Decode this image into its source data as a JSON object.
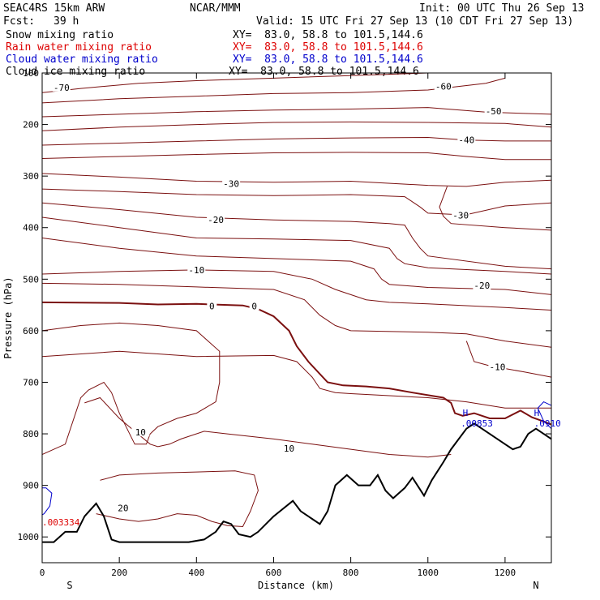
{
  "header": {
    "model": "SEAC4RS 15km ARW",
    "center": "NCAR/MMM",
    "init": "Init: 00 UTC Thu 26 Sep 13",
    "fcst_label": "Fcst:",
    "fcst_value": "39 h",
    "valid": "Valid: 15 UTC Fri 27 Sep 13 (10 CDT Fri 27 Sep 13)"
  },
  "colors": {
    "temperature": "#7b1010",
    "freezing": "#7b1010",
    "snow": "#000000",
    "rain": "#dd0000",
    "cloud_water": "#0000cc",
    "cloud_ice": "#000000",
    "terrain": "#000000"
  },
  "fields": [
    {
      "name": "Snow mixing ratio",
      "xy": "XY=  83.0, 58.8 to 101.5,144.6",
      "color": "#000000"
    },
    {
      "name": "Rain water mixing ratio",
      "xy": "XY=  83.0, 58.8 to 101.5,144.6",
      "color": "#dd0000"
    },
    {
      "name": "Cloud water mixing ratio",
      "xy": "XY=  83.0, 58.8 to 101.5,144.6",
      "color": "#0000cc"
    },
    {
      "name": "Cloud ice mixing ratio",
      "xy": "XY=  83.0, 58.8 to 101.5,144.6",
      "color": "#000000"
    }
  ],
  "chart_data": {
    "type": "line",
    "xlabel": "Distance (km)",
    "ylabel": "Pressure (hPa)",
    "xlim": [
      0,
      1320
    ],
    "ylim": [
      1050,
      100
    ],
    "x_ticks": [
      0,
      200,
      400,
      600,
      800,
      1000,
      1200
    ],
    "y_ticks": [
      200,
      300,
      400,
      500,
      600,
      700,
      800,
      900,
      1000
    ],
    "y_top_label": "100",
    "left_end": "S",
    "right_end": "N",
    "temperature_isotherms": [
      {
        "label": "-70",
        "label_x": 50,
        "label_y": 128,
        "points": [
          [
            0,
            138
          ],
          [
            100,
            130
          ],
          [
            250,
            120
          ],
          [
            400,
            115
          ],
          [
            600,
            110
          ],
          [
            800,
            105
          ],
          [
            1000,
            100
          ]
        ]
      },
      {
        "label": "-60",
        "label_x": 1040,
        "label_y": 126,
        "points": [
          [
            0,
            158
          ],
          [
            200,
            150
          ],
          [
            400,
            145
          ],
          [
            600,
            140
          ],
          [
            800,
            138
          ],
          [
            1000,
            133
          ],
          [
            1150,
            120
          ],
          [
            1200,
            110
          ]
        ]
      },
      {
        "label": "-50",
        "label_x": 1170,
        "label_y": 174,
        "points": [
          [
            0,
            185
          ],
          [
            200,
            180
          ],
          [
            400,
            175
          ],
          [
            600,
            172
          ],
          [
            800,
            170
          ],
          [
            1000,
            167
          ],
          [
            1150,
            176
          ],
          [
            1320,
            180
          ]
        ]
      },
      {
        "points": [
          [
            0,
            212
          ],
          [
            200,
            205
          ],
          [
            400,
            200
          ],
          [
            600,
            196
          ],
          [
            800,
            195
          ],
          [
            1000,
            196
          ],
          [
            1200,
            198
          ],
          [
            1320,
            205
          ]
        ]
      },
      {
        "label": "-40",
        "label_x": 1100,
        "label_y": 230,
        "points": [
          [
            0,
            240
          ],
          [
            200,
            236
          ],
          [
            400,
            232
          ],
          [
            600,
            228
          ],
          [
            800,
            226
          ],
          [
            1000,
            225
          ],
          [
            1100,
            230
          ],
          [
            1200,
            232
          ],
          [
            1320,
            232
          ]
        ]
      },
      {
        "points": [
          [
            0,
            266
          ],
          [
            200,
            262
          ],
          [
            400,
            258
          ],
          [
            600,
            255
          ],
          [
            800,
            254
          ],
          [
            1000,
            255
          ],
          [
            1100,
            262
          ],
          [
            1200,
            268
          ],
          [
            1320,
            268
          ]
        ]
      },
      {
        "label": "-30",
        "label_x": 490,
        "label_y": 315,
        "points": [
          [
            0,
            295
          ],
          [
            200,
            302
          ],
          [
            400,
            310
          ],
          [
            600,
            312
          ],
          [
            800,
            310
          ],
          [
            1000,
            318
          ],
          [
            1100,
            320
          ],
          [
            1200,
            312
          ],
          [
            1320,
            308
          ]
        ]
      },
      {
        "points": [
          [
            0,
            325
          ],
          [
            200,
            330
          ],
          [
            400,
            336
          ],
          [
            600,
            338
          ],
          [
            800,
            336
          ],
          [
            940,
            340
          ],
          [
            980,
            360
          ],
          [
            1000,
            372
          ],
          [
            1080,
            375
          ],
          [
            1100,
            375
          ],
          [
            1200,
            358
          ],
          [
            1320,
            352
          ]
        ]
      },
      {
        "label": "-30",
        "label_x": 1085,
        "label_y": 376,
        "points": [
          [
            1050,
            320
          ],
          [
            1030,
            360
          ],
          [
            1040,
            378
          ],
          [
            1060,
            392
          ],
          [
            1200,
            400
          ],
          [
            1320,
            405
          ]
        ]
      },
      {
        "label": "-20",
        "label_x": 450,
        "label_y": 385,
        "points": [
          [
            0,
            352
          ],
          [
            200,
            365
          ],
          [
            400,
            380
          ],
          [
            600,
            385
          ],
          [
            800,
            388
          ],
          [
            900,
            392
          ],
          [
            940,
            395
          ],
          [
            960,
            420
          ],
          [
            980,
            440
          ],
          [
            1000,
            455
          ],
          [
            1200,
            475
          ],
          [
            1320,
            480
          ]
        ]
      },
      {
        "points": [
          [
            0,
            380
          ],
          [
            200,
            400
          ],
          [
            400,
            420
          ],
          [
            600,
            422
          ],
          [
            800,
            425
          ],
          [
            900,
            440
          ],
          [
            920,
            460
          ],
          [
            940,
            470
          ],
          [
            1000,
            478
          ],
          [
            1200,
            485
          ],
          [
            1320,
            490
          ]
        ]
      },
      {
        "label": "-20",
        "label_x": 1140,
        "label_y": 512,
        "points": [
          [
            0,
            420
          ],
          [
            200,
            440
          ],
          [
            400,
            455
          ],
          [
            600,
            460
          ],
          [
            800,
            465
          ],
          [
            860,
            480
          ],
          [
            880,
            500
          ],
          [
            900,
            510
          ],
          [
            1000,
            516
          ],
          [
            1200,
            520
          ],
          [
            1320,
            530
          ]
        ]
      },
      {
        "label": "-10",
        "label_x": 400,
        "label_y": 482,
        "points": [
          [
            0,
            490
          ],
          [
            200,
            485
          ],
          [
            400,
            482
          ],
          [
            600,
            485
          ],
          [
            700,
            500
          ],
          [
            760,
            520
          ],
          [
            800,
            530
          ],
          [
            840,
            540
          ],
          [
            900,
            545
          ],
          [
            1000,
            548
          ],
          [
            1200,
            555
          ],
          [
            1320,
            560
          ]
        ]
      },
      {
        "points": [
          [
            0,
            508
          ],
          [
            200,
            510
          ],
          [
            400,
            515
          ],
          [
            600,
            520
          ],
          [
            680,
            540
          ],
          [
            720,
            570
          ],
          [
            760,
            590
          ],
          [
            800,
            600
          ],
          [
            1000,
            603
          ],
          [
            1100,
            606
          ],
          [
            1200,
            620
          ],
          [
            1320,
            632
          ]
        ]
      },
      {
        "label": "-10",
        "label_x": 1180,
        "label_y": 670,
        "points": [
          [
            0,
            650
          ],
          [
            200,
            640
          ],
          [
            400,
            650
          ],
          [
            600,
            648
          ],
          [
            660,
            660
          ],
          [
            700,
            690
          ],
          [
            720,
            712
          ],
          [
            760,
            720
          ],
          [
            800,
            722
          ],
          [
            1000,
            730
          ],
          [
            1100,
            738
          ],
          [
            1200,
            750
          ],
          [
            1320,
            750
          ]
        ]
      },
      {
        "points": [
          [
            1100,
            620
          ],
          [
            1120,
            660
          ],
          [
            1160,
            668
          ],
          [
            1250,
            680
          ],
          [
            1320,
            690
          ]
        ]
      },
      {
        "label": "10",
        "label_x": 255,
        "label_y": 797,
        "points": [
          [
            0,
            600
          ],
          [
            100,
            590
          ],
          [
            200,
            585
          ],
          [
            300,
            590
          ],
          [
            400,
            600
          ],
          [
            460,
            640
          ],
          [
            460,
            700
          ],
          [
            450,
            738
          ],
          [
            400,
            760
          ],
          [
            350,
            770
          ],
          [
            300,
            786
          ],
          [
            280,
            800
          ],
          [
            270,
            820
          ],
          [
            240,
            820
          ],
          [
            220,
            790
          ],
          [
            200,
            760
          ],
          [
            180,
            720
          ],
          [
            160,
            700
          ],
          [
            120,
            715
          ],
          [
            100,
            730
          ],
          [
            60,
            820
          ],
          [
            0,
            840
          ]
        ]
      },
      {
        "label": "10",
        "label_x": 640,
        "label_y": 828,
        "points": [
          [
            110,
            740
          ],
          [
            150,
            730
          ],
          [
            200,
            770
          ],
          [
            280,
            820
          ],
          [
            300,
            825
          ],
          [
            330,
            820
          ],
          [
            360,
            810
          ],
          [
            420,
            795
          ],
          [
            480,
            800
          ],
          [
            600,
            810
          ],
          [
            700,
            820
          ],
          [
            800,
            830
          ],
          [
            900,
            840
          ],
          [
            1000,
            845
          ],
          [
            1060,
            840
          ]
        ]
      },
      {
        "label": "20",
        "label_x": 210,
        "label_y": 944,
        "points": [
          [
            150,
            890
          ],
          [
            200,
            880
          ],
          [
            300,
            876
          ],
          [
            400,
            874
          ],
          [
            500,
            872
          ],
          [
            550,
            880
          ],
          [
            560,
            910
          ],
          [
            540,
            950
          ],
          [
            520,
            980
          ],
          [
            480,
            978
          ],
          [
            440,
            970
          ],
          [
            400,
            958
          ],
          [
            350,
            955
          ],
          [
            300,
            965
          ],
          [
            250,
            970
          ],
          [
            200,
            965
          ],
          [
            170,
            960
          ],
          [
            140,
            955
          ]
        ]
      }
    ],
    "freezing_level": {
      "label": "0",
      "label_positions": [
        [
          440,
          552
        ],
        [
          550,
          552
        ]
      ],
      "points": [
        [
          0,
          545
        ],
        [
          200,
          546
        ],
        [
          300,
          549
        ],
        [
          400,
          548
        ],
        [
          520,
          551
        ],
        [
          560,
          558
        ],
        [
          600,
          572
        ],
        [
          640,
          600
        ],
        [
          660,
          630
        ],
        [
          690,
          660
        ],
        [
          740,
          700
        ],
        [
          780,
          706
        ],
        [
          840,
          708
        ],
        [
          900,
          712
        ],
        [
          960,
          720
        ],
        [
          1040,
          730
        ],
        [
          1060,
          740
        ],
        [
          1070,
          760
        ],
        [
          1090,
          765
        ],
        [
          1120,
          760
        ],
        [
          1160,
          770
        ],
        [
          1200,
          770
        ],
        [
          1240,
          755
        ],
        [
          1270,
          768
        ],
        [
          1300,
          776
        ],
        [
          1320,
          782
        ]
      ]
    },
    "terrain_pressure": {
      "x": [
        0,
        30,
        60,
        90,
        110,
        140,
        160,
        180,
        200,
        260,
        320,
        380,
        420,
        450,
        470,
        490,
        510,
        540,
        560,
        600,
        650,
        670,
        700,
        720,
        740,
        760,
        790,
        820,
        850,
        870,
        890,
        910,
        940,
        960,
        990,
        1010,
        1040,
        1060,
        1080,
        1100,
        1120,
        1140,
        1160,
        1180,
        1200,
        1220,
        1240,
        1260,
        1280,
        1300,
        1320
      ],
      "p": [
        1010,
        1010,
        990,
        990,
        960,
        935,
        960,
        1005,
        1010,
        1010,
        1010,
        1010,
        1005,
        990,
        970,
        975,
        995,
        1000,
        990,
        960,
        930,
        950,
        965,
        975,
        950,
        900,
        880,
        900,
        900,
        880,
        910,
        925,
        905,
        885,
        920,
        890,
        855,
        830,
        810,
        790,
        780,
        790,
        800,
        810,
        820,
        830,
        825,
        800,
        790,
        800,
        810
      ]
    },
    "cloud_water": {
      "labels": [
        {
          "text": "H",
          "x": 1090,
          "y": 765
        },
        {
          "text": ".00853",
          "x": 1085,
          "y": 786
        },
        {
          "text": "H",
          "x": 1275,
          "y": 765
        },
        {
          "text": ".0910",
          "x": 1275,
          "y": 786
        }
      ],
      "contours": [
        [
          [
            1320,
            745
          ],
          [
            1300,
            738
          ],
          [
            1285,
            750
          ],
          [
            1300,
            775
          ],
          [
            1320,
            790
          ]
        ],
        [
          [
            0,
            905
          ],
          [
            10,
            905
          ],
          [
            25,
            915
          ],
          [
            20,
            940
          ],
          [
            5,
            955
          ],
          [
            0,
            957
          ]
        ]
      ]
    },
    "rain": {
      "labels": [
        {
          "text": ".003334",
          "x": 0,
          "y": 978
        }
      ]
    }
  }
}
